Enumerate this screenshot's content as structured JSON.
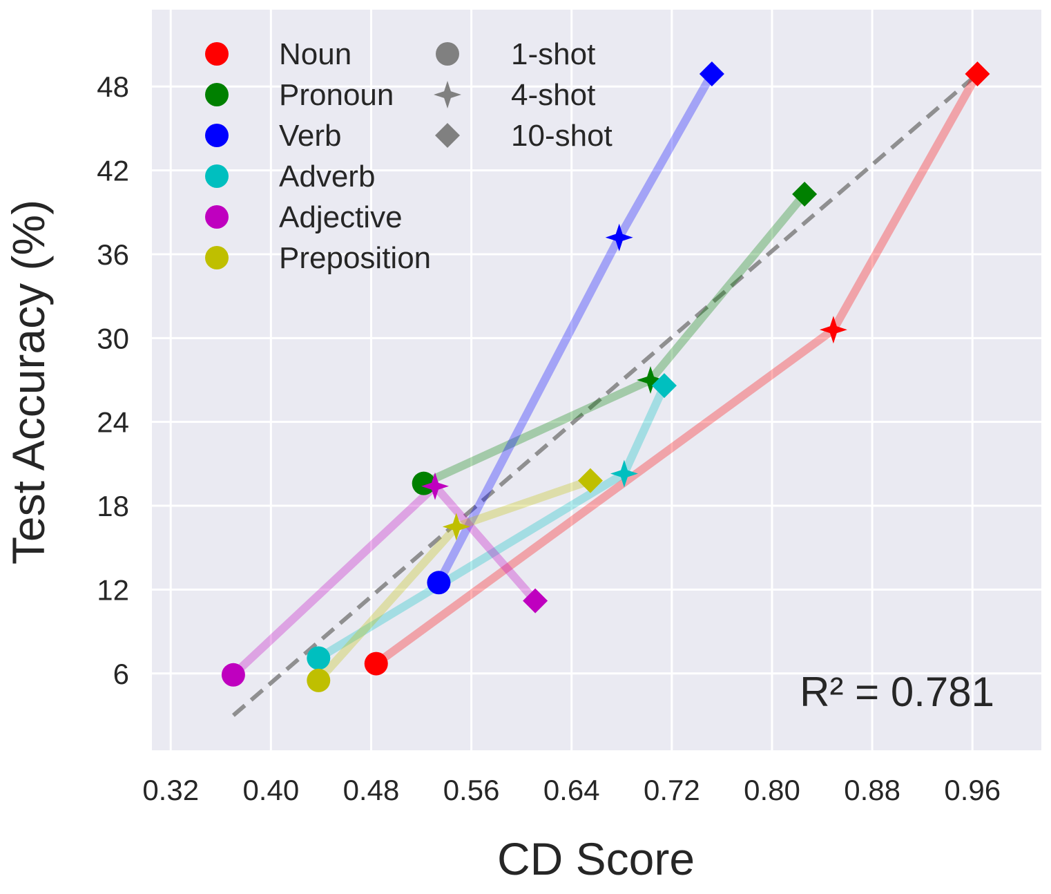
{
  "chart_data": {
    "type": "scatter",
    "title": "",
    "xlabel": "CD Score",
    "ylabel": "Test Accuracy (%)",
    "xlim": [
      0.305,
      1.015
    ],
    "ylim": [
      0.5,
      53.5
    ],
    "xticks": [
      0.32,
      0.4,
      0.48,
      0.56,
      0.64,
      0.72,
      0.8,
      0.88,
      0.96
    ],
    "xtick_labels": [
      "0.32",
      "0.40",
      "0.48",
      "0.56",
      "0.64",
      "0.72",
      "0.80",
      "0.88",
      "0.96"
    ],
    "yticks": [
      6,
      12,
      18,
      24,
      30,
      36,
      42,
      48
    ],
    "ytick_labels": [
      "6",
      "12",
      "18",
      "24",
      "30",
      "36",
      "42",
      "48"
    ],
    "grid": true,
    "shots": [
      "1-shot",
      "4-shot",
      "10-shot"
    ],
    "series": [
      {
        "name": "Noun",
        "color": "#ff0000",
        "x": [
          0.484,
          0.849,
          0.964
        ],
        "y": [
          6.7,
          30.6,
          48.9
        ]
      },
      {
        "name": "Pronoun",
        "color": "#008000",
        "x": [
          0.522,
          0.703,
          0.826
        ],
        "y": [
          19.6,
          27.0,
          40.3
        ]
      },
      {
        "name": "Verb",
        "color": "#0000ff",
        "x": [
          0.534,
          0.678,
          0.752
        ],
        "y": [
          12.5,
          37.2,
          48.9
        ]
      },
      {
        "name": "Adverb",
        "color": "#00bfbf",
        "x": [
          0.438,
          0.682,
          0.714
        ],
        "y": [
          7.1,
          20.3,
          26.6
        ]
      },
      {
        "name": "Adjective",
        "color": "#bf00bf",
        "x": [
          0.37,
          0.531,
          0.611
        ],
        "y": [
          5.9,
          19.4,
          11.2
        ]
      },
      {
        "name": "Preposition",
        "color": "#bfbf00",
        "x": [
          0.438,
          0.548,
          0.655
        ],
        "y": [
          5.5,
          16.5,
          19.8
        ]
      }
    ],
    "fit_line": {
      "x": [
        0.37,
        0.964
      ],
      "y": [
        3.0,
        48.9
      ],
      "color": "#808080",
      "style": "dashed"
    },
    "annotation": "R² = 0.781",
    "legend_position": "top-left",
    "colors": {
      "background": "#eaeaf2",
      "grid": "#ffffff",
      "text": "#262626",
      "shot_marker": "#808080"
    }
  }
}
